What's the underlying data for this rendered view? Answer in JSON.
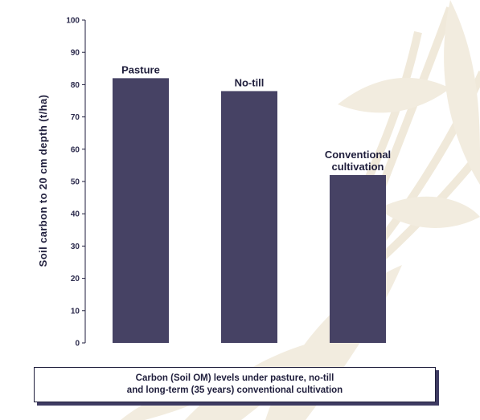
{
  "chart_data": {
    "type": "bar",
    "title": "",
    "xlabel": "",
    "ylabel": "Soil carbon to 20 cm depth (t/ha)",
    "ylim": [
      0,
      100
    ],
    "yticks": [
      0,
      10,
      20,
      30,
      40,
      50,
      60,
      70,
      80,
      90,
      100
    ],
    "categories": [
      "Pasture",
      "No-till",
      "Conventional cultivation"
    ],
    "category_label_lines": [
      [
        "Pasture"
      ],
      [
        "No-till"
      ],
      [
        "Conventional",
        "cultivation"
      ]
    ],
    "values": [
      82,
      78,
      52
    ],
    "bar_color": "#464264",
    "grid": false,
    "legend": "none"
  },
  "caption": {
    "text": "Carbon (Soil OM) levels under pasture, no-till\nand long-term (35 years) conventional cultivation"
  },
  "colors": {
    "text": "#1f1e3c",
    "caption_shadow": "#3e3b62",
    "background_leaf": "#efe7d6"
  }
}
